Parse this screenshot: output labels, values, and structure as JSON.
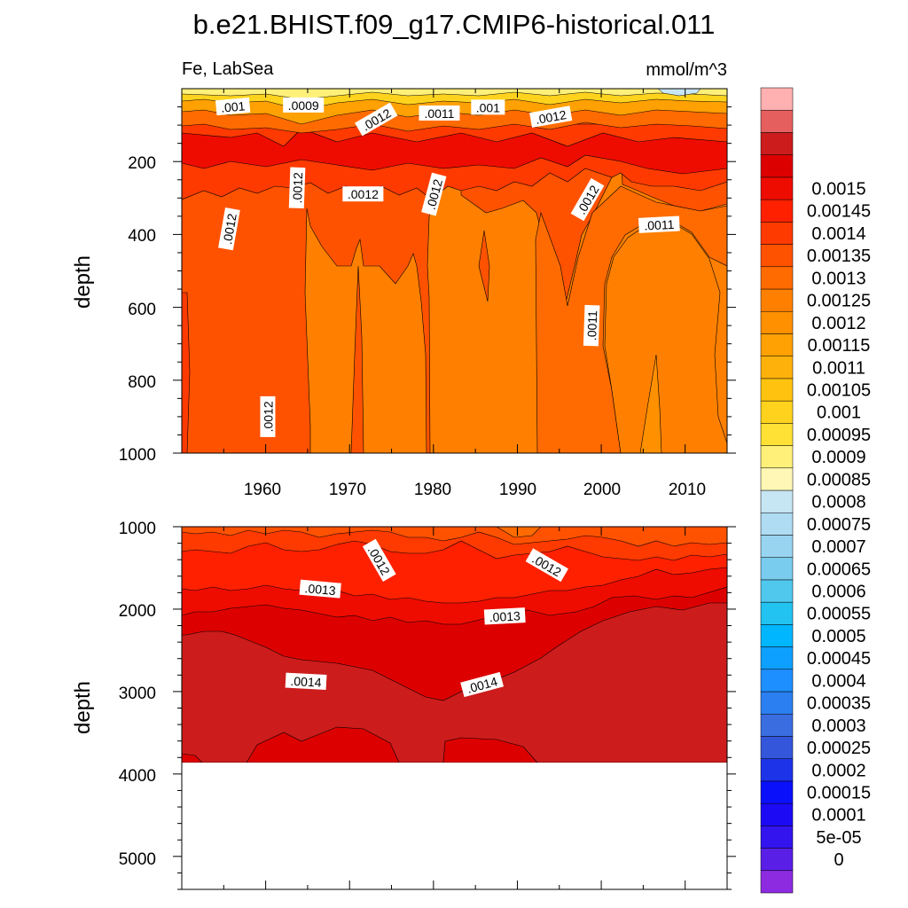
{
  "chart_data": {
    "type": "heatmap",
    "title": "b.e21.BHIST.f09_g17.CMIP6-historical.011",
    "variable_label": "Fe, LabSea",
    "units_label": "mmol/m^3",
    "ylabel": "depth",
    "x_range": [
      1950,
      2015
    ],
    "x_ticks": [
      "1960",
      "1970",
      "1980",
      "1990",
      "2000",
      "2010"
    ],
    "upper_panel": {
      "ylim": [
        0,
        1000
      ],
      "y_ticks": [
        "200",
        "400",
        "600",
        "800",
        "1000"
      ],
      "contour_labels": [
        {
          "text": ".001",
          "year": 1956.1,
          "depth": 50,
          "angle": -5
        },
        {
          "text": ".0009",
          "year": 1964.5,
          "depth": 46,
          "angle": 0
        },
        {
          "text": ".0012",
          "year": 1973.2,
          "depth": 85,
          "angle": -30
        },
        {
          "text": ".0011",
          "year": 1980.7,
          "depth": 68,
          "angle": 0
        },
        {
          "text": ".001",
          "year": 1986.5,
          "depth": 52,
          "angle": 0
        },
        {
          "text": ".0012",
          "year": 1994.0,
          "depth": 78,
          "angle": -10
        },
        {
          "text": ".0012",
          "year": 1955.7,
          "depth": 385,
          "angle": -80
        },
        {
          "text": ".0012",
          "year": 1963.8,
          "depth": 272,
          "angle": -88
        },
        {
          "text": ".0012",
          "year": 1971.6,
          "depth": 290,
          "angle": 0
        },
        {
          "text": ".0012",
          "year": 1980.1,
          "depth": 290,
          "angle": -75
        },
        {
          "text": ".0012",
          "year": 1998.4,
          "depth": 305,
          "angle": -60
        },
        {
          "text": ".0011",
          "year": 2006.9,
          "depth": 374,
          "angle": -3
        },
        {
          "text": ".0011",
          "year": 1998.9,
          "depth": 650,
          "angle": -88
        },
        {
          "text": ".0012",
          "year": 1960.3,
          "depth": 900,
          "angle": -90
        }
      ]
    },
    "lower_panel": {
      "ylim": [
        1000,
        5400
      ],
      "y_ticks": [
        "1000",
        "2000",
        "3000",
        "4000",
        "5000"
      ],
      "data_bottom_depth": 3870,
      "contour_labels": [
        {
          "text": ".0012",
          "year": 1973.5,
          "depth": 1410,
          "angle": 60
        },
        {
          "text": ".0012",
          "year": 1993.5,
          "depth": 1470,
          "angle": 30
        },
        {
          "text": ".0013",
          "year": 1966.5,
          "depth": 1760,
          "angle": 5
        },
        {
          "text": ".0013",
          "year": 1988.5,
          "depth": 2090,
          "angle": -3
        },
        {
          "text": ".0014",
          "year": 1964.8,
          "depth": 2880,
          "angle": 3
        },
        {
          "text": ".0014",
          "year": 1985.8,
          "depth": 2920,
          "angle": -15
        }
      ]
    },
    "colorbar": {
      "colors": [
        "#8c2be0",
        "#5a1fe6",
        "#3314ef",
        "#1c0af5",
        "#0b10fb",
        "#1d33e8",
        "#3356db",
        "#3a6de0",
        "#2b7ff0",
        "#1e8fff",
        "#0ea0ff",
        "#00b7ff",
        "#22c3f0",
        "#50c8ee",
        "#79ccee",
        "#98d4f0",
        "#afdcf2",
        "#c7e6f4",
        "#fff7b5",
        "#fff07a",
        "#ffe135",
        "#ffd31d",
        "#ffc30f",
        "#ffb10b",
        "#ffa003",
        "#ff9000",
        "#ff8000",
        "#ff6b00",
        "#ff5200",
        "#ff3a00",
        "#ff2000",
        "#ee0c00",
        "#dd0000",
        "#cc1c1c",
        "#e65f5f",
        "#ffb0b0"
      ],
      "labels": [
        "0",
        "5e-05",
        "0.0001",
        "0.00015",
        "0.0002",
        "0.00025",
        "0.0003",
        "0.00035",
        "0.0004",
        "0.00045",
        "0.0005",
        "0.00055",
        "0.0006",
        "0.00065",
        "0.0007",
        "0.00075",
        "0.0008",
        "0.00085",
        "0.0009",
        "0.00095",
        "0.001",
        "0.00105",
        "0.0011",
        "0.00115",
        "0.0012",
        "0.00125",
        "0.0013",
        "0.00135",
        "0.0014",
        "0.00145",
        "0.0015"
      ]
    }
  }
}
